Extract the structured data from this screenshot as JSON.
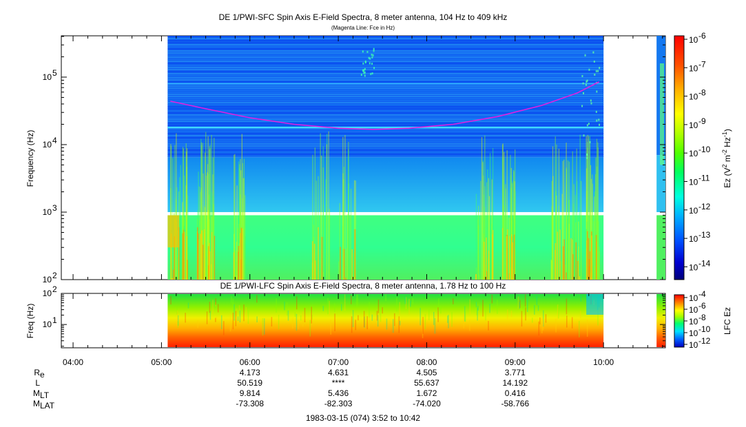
{
  "chart_data": [
    {
      "type": "heatmap",
      "title": "DE 1/PWI-SFC  Spin Axis E-Field Spectra, 8 meter antenna, 104 Hz to 409 kHz",
      "subtitle": "(Magenta Line: Fce in Hz)",
      "ylabel": "Frequency (Hz)",
      "yscale": "log",
      "ylim": [
        100,
        409000
      ],
      "y_ticks": [
        {
          "value": 100,
          "base": "10",
          "exp": "2"
        },
        {
          "value": 1000,
          "base": "10",
          "exp": "3"
        },
        {
          "value": 10000,
          "base": "10",
          "exp": "4"
        },
        {
          "value": 100000,
          "base": "10",
          "exp": "5"
        }
      ],
      "data_start_hour": 5.07,
      "data_end_hour": 10.0,
      "data_segment2": [
        10.6,
        10.7
      ],
      "fce_line": {
        "color": "#e020e0",
        "hours": [
          5.1,
          5.5,
          6.0,
          6.5,
          7.0,
          7.4,
          7.8,
          8.3,
          8.8,
          9.3,
          9.7,
          9.95
        ],
        "hz": [
          44000,
          34000,
          25000,
          20000,
          17500,
          16800,
          17500,
          20000,
          26000,
          38000,
          58000,
          85000
        ]
      },
      "colorbar": {
        "label": "Ez (V",
        "label_sup1": "2",
        "label_mid": " m",
        "label_sup2": "-2",
        "label_mid2": " Hz",
        "label_sup3": "-1",
        "label_end": ")",
        "scale": "log",
        "range": [
          3e-15,
          1e-06
        ],
        "ticks": [
          {
            "base": "10",
            "exp": "-6"
          },
          {
            "base": "10",
            "exp": "-7"
          },
          {
            "base": "10",
            "exp": "-8"
          },
          {
            "base": "10",
            "exp": "-9"
          },
          {
            "base": "10",
            "exp": "-10"
          },
          {
            "base": "10",
            "exp": "-11"
          },
          {
            "base": "10",
            "exp": "-12"
          },
          {
            "base": "10",
            "exp": "-13"
          },
          {
            "base": "10",
            "exp": "-14"
          }
        ]
      }
    },
    {
      "type": "heatmap",
      "title": "DE 1/PWI-LFC  Spin Axis E-Field Spectra, 8 meter antenna, 1.78 Hz to 100 Hz",
      "ylabel": "Freq (Hz)",
      "yscale": "log",
      "ylim": [
        1.78,
        100
      ],
      "y_ticks": [
        {
          "value": 10,
          "base": "10",
          "exp": "1"
        },
        {
          "value": 100,
          "base": "10",
          "exp": "2"
        }
      ],
      "colorbar": {
        "label": "LFC Ez",
        "scale": "log",
        "range": [
          1e-12,
          0.0001
        ],
        "ticks": [
          {
            "base": "10",
            "exp": "-4"
          },
          {
            "base": "10",
            "exp": "-6"
          },
          {
            "base": "10",
            "exp": "-8"
          },
          {
            "base": "10",
            "exp": "-10"
          },
          {
            "base": "10",
            "exp": "-12"
          }
        ]
      }
    }
  ],
  "x_axis": {
    "range_hours": [
      3.867,
      10.7
    ],
    "ticks": [
      {
        "hour": 4,
        "label": "04:00"
      },
      {
        "hour": 5,
        "label": "05:00"
      },
      {
        "hour": 6,
        "label": "06:00"
      },
      {
        "hour": 7,
        "label": "07:00"
      },
      {
        "hour": 8,
        "label": "08:00"
      },
      {
        "hour": 9,
        "label": "09:00"
      },
      {
        "hour": 10,
        "label": "10:00"
      }
    ]
  },
  "ephemeris": {
    "rows": [
      {
        "label": "R",
        "sub": "e",
        "values": [
          "4.173",
          "4.631",
          "4.505",
          "3.771"
        ]
      },
      {
        "label": "L",
        "sub": "",
        "values": [
          "50.519",
          "****",
          "55.637",
          "14.192"
        ]
      },
      {
        "label": "M",
        "sub": "LT",
        "values": [
          "9.814",
          "5.436",
          "1.672",
          "0.416"
        ]
      },
      {
        "label": "M",
        "sub": "LAT",
        "values": [
          "-73.308",
          "-82.303",
          "-74.020",
          "-58.766"
        ]
      }
    ],
    "hours": [
      6,
      7,
      8,
      9
    ]
  },
  "footer": "1983-03-15 (074) 3:52 to 10:42"
}
